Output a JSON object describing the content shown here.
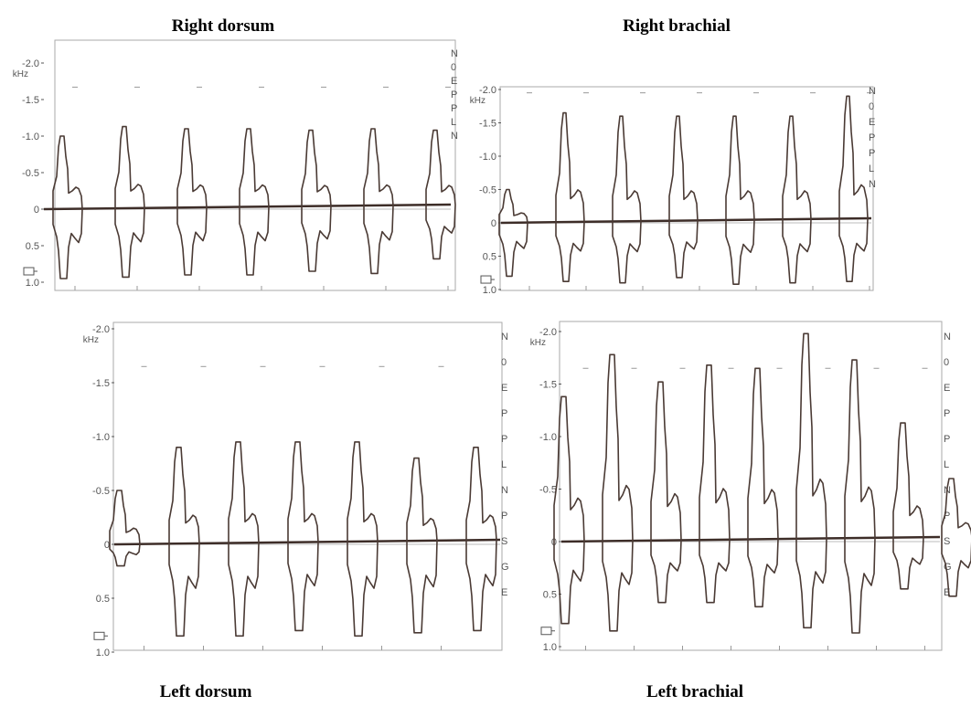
{
  "titles": {
    "top_left": "Right dorsum",
    "top_right": "Right brachial",
    "bottom_left": "Left dorsum",
    "bottom_right": "Left brachial"
  },
  "colors": {
    "waveform": "#4a3a34",
    "baseline": "#3d2d28",
    "axis_text": "#555555",
    "frame": "#aaaaaa"
  },
  "chart_data": [
    {
      "type": "line",
      "title": "Right dorsum",
      "ylabel": "kHz",
      "yticks": [
        "-2.0",
        "-1.5",
        "-1.0",
        "-0.5",
        "0",
        "0.5",
        "1.0"
      ],
      "ylim": [
        1.0,
        -2.0
      ],
      "side_letters": [
        "N",
        "0",
        "E",
        "P",
        "P",
        "L",
        "N"
      ],
      "series": [
        {
          "peaks": [
            -1.0,
            -1.13,
            -1.1,
            -1.1,
            -1.08,
            -1.1,
            -1.08
          ],
          "troughs": [
            0.95,
            0.93,
            0.9,
            0.9,
            0.85,
            0.88,
            0.68
          ]
        }
      ]
    },
    {
      "type": "line",
      "title": "Right brachial",
      "ylabel": "kHz",
      "yticks": [
        "-2.0",
        "-1.5",
        "-1.0",
        "-0.5",
        "0",
        "0.5",
        "1.0"
      ],
      "ylim": [
        1.0,
        -2.0
      ],
      "side_letters": [
        "N",
        "0",
        "E",
        "P",
        "P",
        "L",
        "N"
      ],
      "series": [
        {
          "peaks": [
            -0.5,
            -1.65,
            -1.6,
            -1.6,
            -1.6,
            -1.6,
            -1.9
          ],
          "troughs": [
            0.8,
            0.88,
            0.9,
            0.82,
            0.92,
            0.9,
            0.88
          ]
        }
      ]
    },
    {
      "type": "line",
      "title": "Left dorsum",
      "ylabel": "kHz",
      "yticks": [
        "-2.0",
        "-1.5",
        "-1.0",
        "-0.5",
        "0",
        "0.5",
        "1.0"
      ],
      "ylim": [
        1.0,
        -2.0
      ],
      "side_letters": [
        "N",
        "0",
        "E",
        "P",
        "P",
        "L",
        "N",
        "P",
        "S",
        "G",
        "E"
      ],
      "series": [
        {
          "peaks": [
            -0.5,
            -0.9,
            -0.95,
            -0.95,
            -0.95,
            -0.8,
            -0.9
          ],
          "troughs": [
            0.2,
            0.85,
            0.85,
            0.8,
            0.85,
            0.82,
            0.8
          ]
        }
      ]
    },
    {
      "type": "line",
      "title": "Left brachial",
      "ylabel": "kHz",
      "yticks": [
        "-2.0",
        "-1.5",
        "-1.0",
        "-0.5",
        "0",
        "0.5",
        "1.0"
      ],
      "ylim": [
        1.0,
        -2.0
      ],
      "side_letters": [
        "N",
        "0",
        "E",
        "P",
        "P",
        "L",
        "N",
        "P",
        "S",
        "G",
        "E"
      ],
      "series": [
        {
          "peaks": [
            -1.38,
            -1.78,
            -1.52,
            -1.68,
            -1.65,
            -1.98,
            -1.73,
            -1.13,
            -0.6
          ],
          "troughs": [
            0.78,
            0.85,
            0.58,
            0.58,
            0.62,
            0.82,
            0.87,
            0.45,
            0.52
          ]
        }
      ]
    }
  ]
}
